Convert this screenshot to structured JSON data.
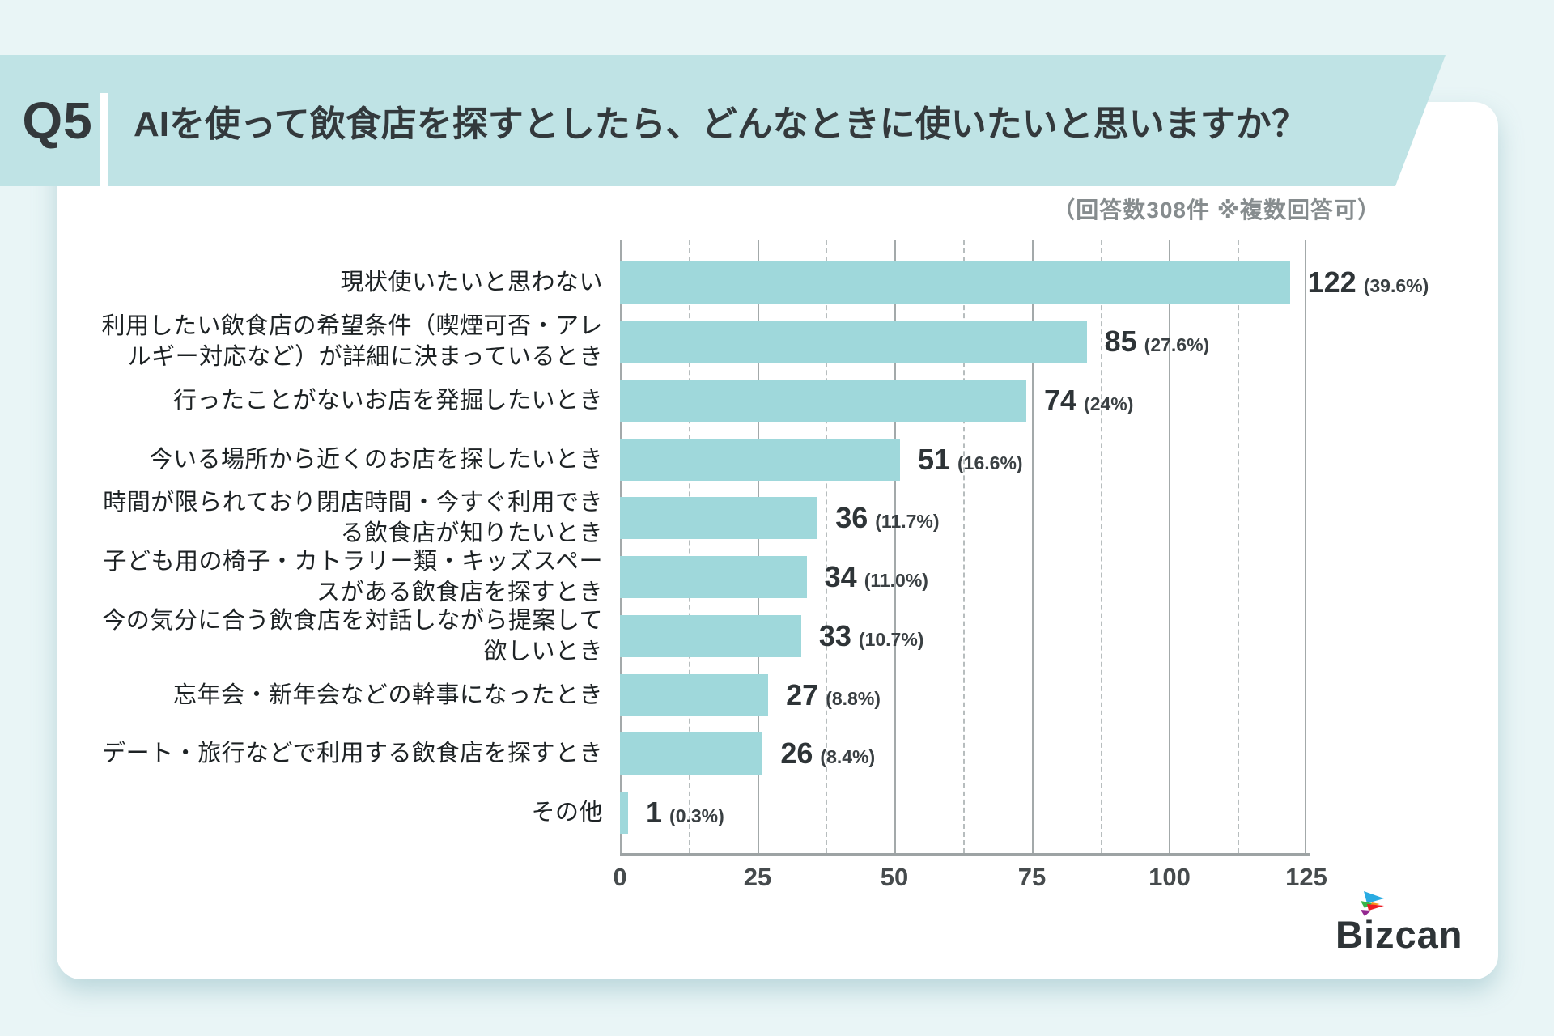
{
  "page": {
    "question_tag": "Q5",
    "title": "AIを使って飲食店を探すとしたら、どんなときに使いたいと思いますか？",
    "note": "（回答数308件 ※複数回答可）",
    "brand": "Bizcan"
  },
  "colors": {
    "page_background": "#e9f5f6",
    "header_band": "#bfe3e5",
    "bar": "#9fd8db",
    "text_dark": "#2e3437",
    "note_gray": "#868c8e"
  },
  "chart_data": {
    "type": "bar",
    "orientation": "horizontal",
    "title": "AIを使って飲食店を探すとしたら、どんなときに使いたいと思いますか？",
    "note": "（回答数308件 ※複数回答可）",
    "x_max": 125,
    "x_ticks": [
      0,
      25,
      50,
      75,
      100,
      125
    ],
    "grid": "major solid, minor dashed every 12.5",
    "rows": [
      {
        "label": "現状使いたいと思わない",
        "value": 122,
        "pct_label": "(39.6%)"
      },
      {
        "label": "利用したい飲食店の希望条件（喫煙可否・アレルギー対応など）が詳細に決まっているとき",
        "value": 85,
        "pct_label": "(27.6%)"
      },
      {
        "label": "行ったことがないお店を発掘したいとき",
        "value": 74,
        "pct_label": "(24%)"
      },
      {
        "label": "今いる場所から近くのお店を探したいとき",
        "value": 51,
        "pct_label": "(16.6%)"
      },
      {
        "label": "時間が限られており閉店時間・今すぐ利用できる飲食店が知りたいとき",
        "value": 36,
        "pct_label": "(11.7%)"
      },
      {
        "label": "子ども用の椅子・カトラリー類・キッズスペースがある飲食店を探すとき",
        "value": 34,
        "pct_label": "(11.0%)"
      },
      {
        "label": "今の気分に合う飲食店を対話しながら提案して欲しいとき",
        "value": 33,
        "pct_label": "(10.7%)"
      },
      {
        "label": "忘年会・新年会などの幹事になったとき",
        "value": 27,
        "pct_label": "(8.8%)"
      },
      {
        "label": "デート・旅行などで利用する飲食店を探すとき",
        "value": 26,
        "pct_label": "(8.4%)"
      },
      {
        "label": "その他",
        "value": 1,
        "pct_label": "(0.3%)"
      }
    ]
  }
}
